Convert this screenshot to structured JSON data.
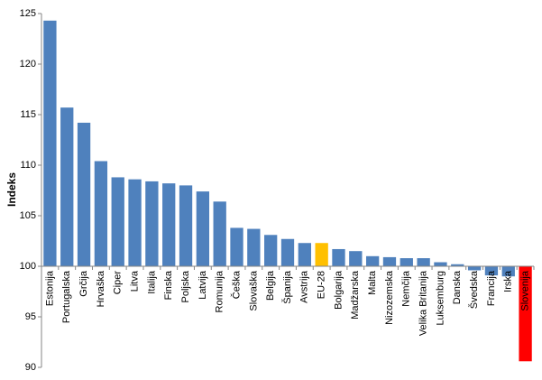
{
  "chart_data": {
    "type": "bar",
    "y_label": "Indeks",
    "categories": [
      "Estonija",
      "Portugalska",
      "Grčija",
      "Hrvaška",
      "Ciper",
      "Litva",
      "Italija",
      "Finska",
      "Poljska",
      "Latvija",
      "Romunija",
      "Češka",
      "Slovaška",
      "Belgija",
      "Španija",
      "Avstrija",
      "EU-28",
      "Bolgarija",
      "Madžarska",
      "Malta",
      "Nizozemska",
      "Nemčija",
      "Velika Britanija",
      "Luksemburg",
      "Danska",
      "Švedska",
      "Francija",
      "Irska",
      "Slovenija"
    ],
    "values": [
      124.3,
      115.7,
      114.2,
      110.4,
      108.8,
      108.6,
      108.4,
      108.2,
      108.0,
      107.4,
      106.4,
      103.8,
      103.7,
      103.1,
      102.7,
      102.3,
      102.3,
      101.7,
      101.5,
      101.0,
      100.9,
      100.8,
      100.8,
      100.4,
      100.2,
      99.6,
      99.1,
      99.0,
      90.6
    ],
    "colors": [
      "#4f81bd",
      "#4f81bd",
      "#4f81bd",
      "#4f81bd",
      "#4f81bd",
      "#4f81bd",
      "#4f81bd",
      "#4f81bd",
      "#4f81bd",
      "#4f81bd",
      "#4f81bd",
      "#4f81bd",
      "#4f81bd",
      "#4f81bd",
      "#4f81bd",
      "#4f81bd",
      "#ffc000",
      "#4f81bd",
      "#4f81bd",
      "#4f81bd",
      "#4f81bd",
      "#4f81bd",
      "#4f81bd",
      "#4f81bd",
      "#4f81bd",
      "#4f81bd",
      "#4f81bd",
      "#4f81bd",
      "#ff0000"
    ],
    "baseline": 100,
    "ylim": [
      90,
      125
    ],
    "yticks": [
      90,
      95,
      100,
      105,
      110,
      115,
      120,
      125
    ],
    "grid": false
  }
}
